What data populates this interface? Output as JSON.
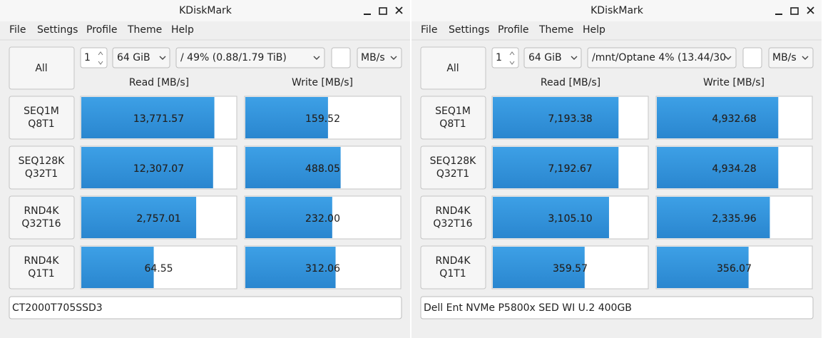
{
  "windows": [
    {
      "title": "KDiskMark",
      "menu": [
        "File",
        "Settings",
        "Profile",
        "Theme",
        "Help"
      ],
      "all_button": "All",
      "loops": "1",
      "size": "64 GiB",
      "target": "/ 49% (0.88/1.79 TiB)",
      "unit": "MB/s",
      "read_header": "Read [MB/s]",
      "write_header": "Write [MB/s]",
      "rows": [
        {
          "name": "SEQ1M",
          "params": "Q8T1",
          "read": {
            "value": 13771.57,
            "label": "13,771.57"
          },
          "write": {
            "value": 159.52,
            "label": "159.52"
          }
        },
        {
          "name": "SEQ128K",
          "params": "Q32T1",
          "read": {
            "value": 12307.07,
            "label": "12,307.07"
          },
          "write": {
            "value": 488.05,
            "label": "488.05"
          }
        },
        {
          "name": "RND4K",
          "params": "Q32T16",
          "read": {
            "value": 2757.01,
            "label": "2,757.01"
          },
          "write": {
            "value": 232.0,
            "label": "232.00"
          }
        },
        {
          "name": "RND4K",
          "params": "Q1T1",
          "read": {
            "value": 64.55,
            "label": "64.55"
          },
          "write": {
            "value": 312.06,
            "label": "312.06"
          }
        }
      ],
      "footer": "CT2000T705SSD3"
    },
    {
      "title": "KDiskMark",
      "menu": [
        "File",
        "Settings",
        "Profile",
        "Theme",
        "Help"
      ],
      "all_button": "All",
      "loops": "1",
      "size": "64 GiB",
      "target": "/mnt/Optane 4% (13.44/30",
      "unit": "MB/s",
      "read_header": "Read [MB/s]",
      "write_header": "Write [MB/s]",
      "rows": [
        {
          "name": "SEQ1M",
          "params": "Q8T1",
          "read": {
            "value": 7193.38,
            "label": "7,193.38"
          },
          "write": {
            "value": 4932.68,
            "label": "4,932.68"
          }
        },
        {
          "name": "SEQ128K",
          "params": "Q32T1",
          "read": {
            "value": 7192.67,
            "label": "7,192.67"
          },
          "write": {
            "value": 4934.28,
            "label": "4,934.28"
          }
        },
        {
          "name": "RND4K",
          "params": "Q32T16",
          "read": {
            "value": 3105.1,
            "label": "3,105.10"
          },
          "write": {
            "value": 2335.96,
            "label": "2,335.96"
          }
        },
        {
          "name": "RND4K",
          "params": "Q1T1",
          "read": {
            "value": 359.57,
            "label": "359.57"
          },
          "write": {
            "value": 356.07,
            "label": "356.07"
          }
        }
      ],
      "footer": "Dell Ent NVMe P5800x SED WI U.2 400GB"
    }
  ]
}
